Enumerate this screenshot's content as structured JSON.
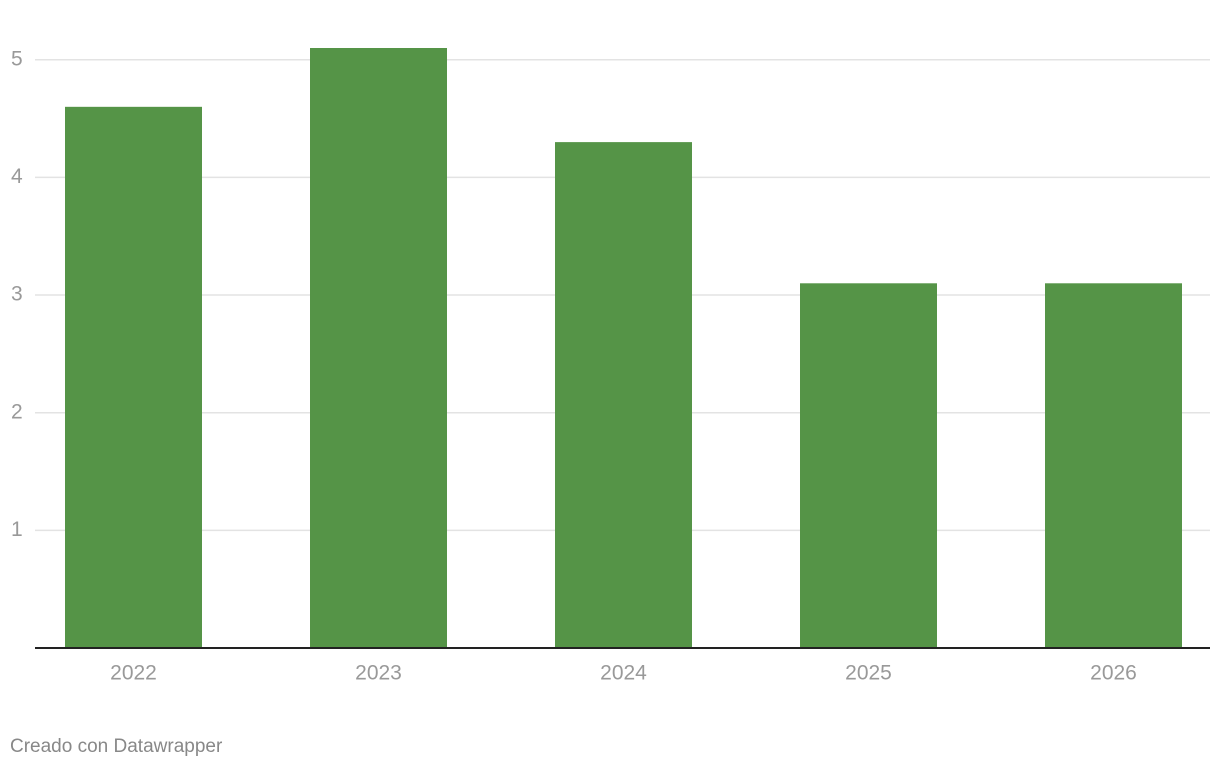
{
  "chart_data": {
    "type": "bar",
    "categories": [
      "2022",
      "2023",
      "2024",
      "2025",
      "2026"
    ],
    "values": [
      4.6,
      5.1,
      4.3,
      3.1,
      3.1
    ],
    "color": "#559447",
    "ylim": [
      0,
      5.1
    ],
    "yticks": [
      1,
      2,
      3,
      4,
      5
    ],
    "grid": true
  },
  "footer": {
    "credit": "Creado con Datawrapper"
  }
}
